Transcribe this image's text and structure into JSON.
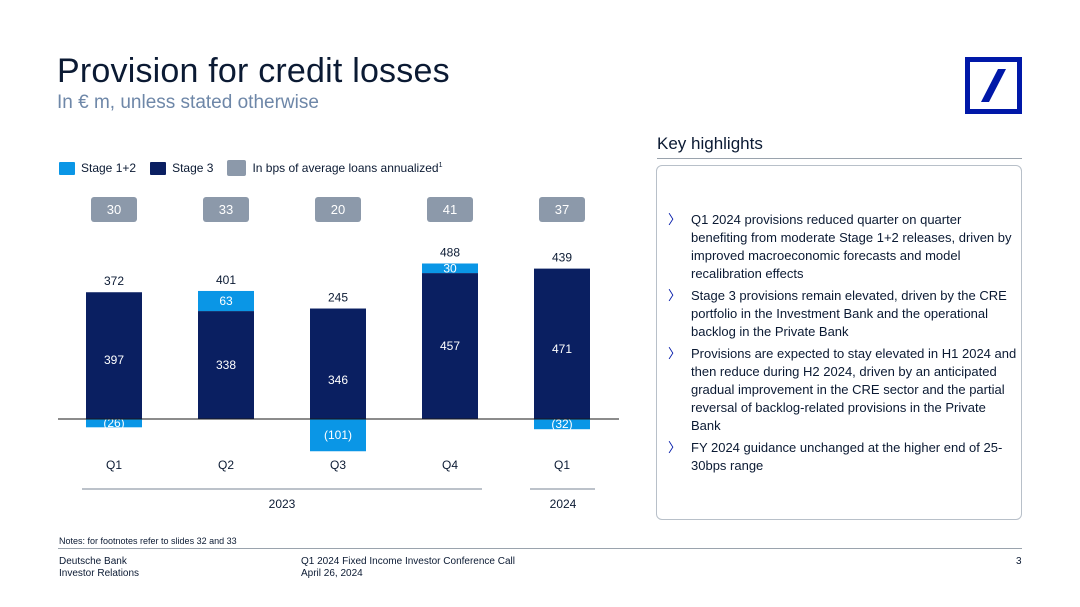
{
  "header": {
    "title": "Provision for credit losses",
    "subtitle": "In € m, unless stated otherwise"
  },
  "legend": {
    "stage12": "Stage 1+2",
    "stage3": "Stage 3",
    "bps_label": "In bps of average loans annualized",
    "bps_footnote": "1"
  },
  "colors": {
    "stage12": "#0a96e6",
    "stage3": "#0a1f61",
    "bps_badge": "#8c99aa",
    "brand": "#0018a8"
  },
  "chart_data": {
    "type": "bar",
    "stacked": true,
    "title": "Provision for credit losses",
    "ylabel": "€ m",
    "categories": [
      "Q1",
      "Q2",
      "Q3",
      "Q4",
      "Q1"
    ],
    "years": [
      {
        "label": "2023",
        "categories": [
          "Q1",
          "Q2",
          "Q3",
          "Q4"
        ]
      },
      {
        "label": "2024",
        "categories": [
          "Q1"
        ]
      }
    ],
    "series": [
      {
        "name": "Stage 3",
        "values": [
          397,
          338,
          346,
          457,
          471
        ]
      },
      {
        "name": "Stage 1+2",
        "values": [
          -26,
          63,
          -101,
          30,
          -32
        ]
      }
    ],
    "totals": [
      372,
      401,
      245,
      488,
      439
    ],
    "bps": [
      30,
      33,
      20,
      41,
      37
    ],
    "stage12_labels": [
      "(26)",
      "63",
      "(101)",
      "30",
      "(32)"
    ],
    "ylim": [
      -120,
      520
    ]
  },
  "highlights": {
    "title": "Key highlights",
    "items": [
      "Q1 2024 provisions reduced quarter on quarter benefiting from moderate Stage 1+2 releases, driven by improved macroeconomic forecasts and model recalibration effects",
      "Stage 3 provisions remain elevated, driven by the CRE portfolio in the Investment Bank and the operational backlog in the Private Bank",
      "Provisions are expected to stay elevated in H1 2024 and then reduce during H2 2024, driven by an anticipated gradual improvement in the CRE sector and the partial reversal of backlog-related provisions in the Private Bank",
      "FY 2024 guidance unchanged at the higher end of 25-30bps range"
    ]
  },
  "notes": "Notes: for footnotes refer to slides 32 and 33",
  "footer": {
    "company": "Deutsche Bank",
    "department": "Investor Relations",
    "event": "Q1 2024 Fixed Income Investor Conference Call",
    "date": "April 26, 2024",
    "page": "3"
  }
}
